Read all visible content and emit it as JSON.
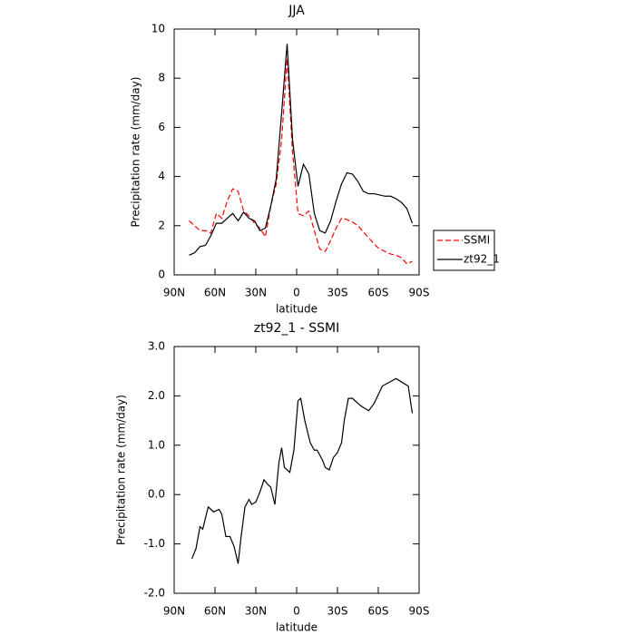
{
  "chart_data": [
    {
      "type": "line",
      "title": "JJA",
      "xlabel": "latitude",
      "ylabel": "Precipitation rate (mm/day)",
      "x": [
        79,
        75,
        71,
        67,
        63,
        59,
        55,
        51,
        47,
        43,
        39,
        35,
        31,
        27,
        23,
        19,
        15,
        11,
        7,
        3,
        -1,
        -5,
        -9,
        -13,
        -17,
        -21,
        -25,
        -29,
        -33,
        -37,
        -41,
        -45,
        -49,
        -53,
        -57,
        -61,
        -65,
        -69,
        -73,
        -77,
        -81,
        -85
      ],
      "xlim": [
        90,
        -90
      ],
      "xticks": [
        {
          "value": 90,
          "label": "90N"
        },
        {
          "value": 60,
          "label": "60N"
        },
        {
          "value": 30,
          "label": "30N"
        },
        0,
        {
          "value": -30,
          "label": "30S"
        },
        {
          "value": -60,
          "label": "60S"
        },
        {
          "value": -90,
          "label": "90S"
        }
      ],
      "ylim": [
        0,
        10
      ],
      "yticks": [
        0,
        2,
        4,
        6,
        8,
        10
      ],
      "legend": "right",
      "series": [
        {
          "name": "SSMI",
          "color": "#ff0000",
          "line_style": "dashed",
          "values": [
            2.2,
            2.0,
            1.8,
            1.8,
            1.7,
            2.5,
            2.3,
            3.0,
            3.5,
            3.4,
            2.6,
            2.4,
            2.1,
            1.9,
            1.55,
            2.8,
            3.7,
            5.5,
            8.8,
            5.0,
            2.5,
            2.4,
            2.6,
            1.8,
            1.05,
            0.95,
            1.4,
            1.9,
            2.3,
            2.25,
            2.15,
            2.0,
            1.75,
            1.5,
            1.25,
            1.05,
            0.95,
            0.85,
            0.8,
            0.7,
            0.45,
            0.55
          ]
        },
        {
          "name": "zt92_1",
          "color": "#000000",
          "line_style": "solid",
          "values": [
            0.8,
            0.9,
            1.15,
            1.2,
            1.6,
            2.1,
            2.1,
            2.3,
            2.5,
            2.2,
            2.55,
            2.3,
            2.2,
            1.8,
            1.9,
            2.8,
            3.9,
            6.6,
            9.4,
            5.5,
            3.6,
            4.5,
            4.1,
            2.5,
            1.8,
            1.7,
            2.2,
            3.0,
            3.7,
            4.15,
            4.1,
            3.8,
            3.4,
            3.3,
            3.3,
            3.25,
            3.2,
            3.2,
            3.1,
            2.95,
            2.7,
            2.1
          ]
        }
      ]
    },
    {
      "type": "line",
      "title": "zt92_1 - SSMI",
      "xlabel": "latitude",
      "ylabel": "Precipitation rate (mm/day)",
      "x": [
        77,
        74,
        71,
        69,
        65,
        61,
        57,
        55,
        52,
        49,
        46,
        43,
        41,
        38,
        35,
        33,
        30,
        27,
        24,
        21,
        19,
        16,
        13,
        11,
        9,
        5,
        2,
        -1,
        -3,
        -6,
        -10,
        -13,
        -15,
        -19,
        -21,
        -24,
        -27,
        -30,
        -33,
        -35,
        -38,
        -41,
        -47,
        -53,
        -57,
        -63,
        -73,
        -79,
        -82,
        -85
      ],
      "xlim": [
        90,
        -90
      ],
      "xticks": [
        {
          "value": 90,
          "label": "90N"
        },
        {
          "value": 60,
          "label": "60N"
        },
        {
          "value": 30,
          "label": "30N"
        },
        0,
        {
          "value": -30,
          "label": "30S"
        },
        {
          "value": -60,
          "label": "60S"
        },
        {
          "value": -90,
          "label": "90S"
        }
      ],
      "ylim": [
        -2,
        3
      ],
      "yticks": [
        {
          "value": -2,
          "label": "-2.0"
        },
        {
          "value": -1,
          "label": "-1.0"
        },
        {
          "value": 0,
          "label": "0.0"
        },
        {
          "value": 1,
          "label": "1.0"
        },
        {
          "value": 2,
          "label": "2.0"
        },
        {
          "value": 3,
          "label": "3.0"
        }
      ],
      "series": [
        {
          "color": "#000000",
          "line_style": "solid",
          "values": [
            -1.3,
            -1.1,
            -0.65,
            -0.7,
            -0.25,
            -0.35,
            -0.3,
            -0.4,
            -0.85,
            -0.85,
            -1.05,
            -1.4,
            -0.9,
            -0.25,
            -0.1,
            -0.2,
            -0.15,
            0.05,
            0.3,
            0.2,
            0.15,
            -0.2,
            0.65,
            0.95,
            0.55,
            0.45,
            0.9,
            1.9,
            1.95,
            1.5,
            1.05,
            0.9,
            0.9,
            0.7,
            0.55,
            0.5,
            0.75,
            0.85,
            1.05,
            1.5,
            1.95,
            1.95,
            1.8,
            1.7,
            1.85,
            2.2,
            2.35,
            2.25,
            2.2,
            1.65
          ]
        }
      ]
    }
  ]
}
